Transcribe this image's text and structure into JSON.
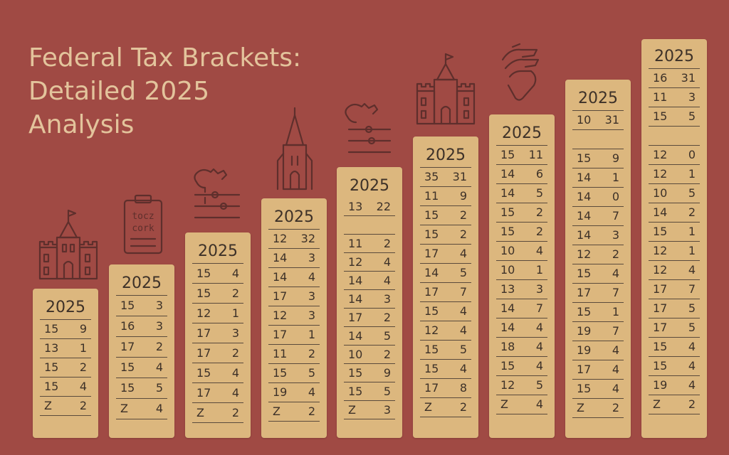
{
  "title_lines": [
    "Federal Tax Brackets:",
    "Detailed 2025",
    "Analysis"
  ],
  "notepad_text": [
    "tocz",
    "cork"
  ],
  "colors": {
    "background": "#a04a44",
    "card": "#dcb77e",
    "title": "#e3c49c",
    "ink": "#5e2f2c"
  },
  "cards": [
    {
      "year": "2025",
      "rows": [
        [
          "15",
          "9"
        ],
        [
          "13",
          "1"
        ],
        [
          "15",
          "2"
        ],
        [
          "15",
          "4"
        ],
        [
          "Z",
          "2"
        ]
      ]
    },
    {
      "year": "2025",
      "rows": [
        [
          "15",
          "3"
        ],
        [
          "16",
          "3"
        ],
        [
          "17",
          "2"
        ],
        [
          "15",
          "4"
        ],
        [
          "15",
          "5"
        ],
        [
          "Z",
          "4"
        ]
      ]
    },
    {
      "year": "2025",
      "rows": [
        [
          "15",
          "4"
        ],
        [
          "15",
          "2"
        ],
        [
          "12",
          "1"
        ],
        [
          "17",
          "3"
        ],
        [
          "17",
          "2"
        ],
        [
          "15",
          "4"
        ],
        [
          "17",
          "4"
        ],
        [
          "Z",
          "2"
        ]
      ]
    },
    {
      "year": "2025",
      "rows": [
        [
          "12",
          "32"
        ],
        [
          "14",
          "3"
        ],
        [
          "14",
          "4"
        ],
        [
          "17",
          "3"
        ],
        [
          "12",
          "3"
        ],
        [
          "17",
          "1"
        ],
        [
          "11",
          "2"
        ],
        [
          "15",
          "5"
        ],
        [
          "19",
          "4"
        ],
        [
          "Z",
          "2"
        ]
      ]
    },
    {
      "year": "2025",
      "rows": [
        [
          "13",
          "22"
        ],
        [
          "",
          ""
        ],
        [
          "11",
          "2"
        ],
        [
          "12",
          "4"
        ],
        [
          "14",
          "4"
        ],
        [
          "14",
          "3"
        ],
        [
          "17",
          "2"
        ],
        [
          "14",
          "5"
        ],
        [
          "10",
          "2"
        ],
        [
          "15",
          "9"
        ],
        [
          "15",
          "5"
        ],
        [
          "Z",
          "3"
        ]
      ]
    },
    {
      "year": "2025",
      "rows": [
        [
          "35",
          "31"
        ],
        [
          "11",
          "9"
        ],
        [
          "15",
          "2"
        ],
        [
          "15",
          "2"
        ],
        [
          "17",
          "4"
        ],
        [
          "14",
          "5"
        ],
        [
          "17",
          "7"
        ],
        [
          "15",
          "4"
        ],
        [
          "12",
          "4"
        ],
        [
          "15",
          "5"
        ],
        [
          "15",
          "4"
        ],
        [
          "17",
          "8"
        ],
        [
          "Z",
          "2"
        ]
      ]
    },
    {
      "year": "2025",
      "rows": [
        [
          "15",
          "11"
        ],
        [
          "14",
          "6"
        ],
        [
          "14",
          "5"
        ],
        [
          "15",
          "2"
        ],
        [
          "15",
          "2"
        ],
        [
          "10",
          "4"
        ],
        [
          "10",
          "1"
        ],
        [
          "13",
          "3"
        ],
        [
          "14",
          "7"
        ],
        [
          "14",
          "4"
        ],
        [
          "18",
          "4"
        ],
        [
          "15",
          "4"
        ],
        [
          "12",
          "5"
        ],
        [
          "Z",
          "4"
        ]
      ]
    },
    {
      "year": "2025",
      "rows": [
        [
          "10",
          "31"
        ],
        [
          "",
          ""
        ],
        [
          "15",
          "9"
        ],
        [
          "14",
          "1"
        ],
        [
          "14",
          "0"
        ],
        [
          "14",
          "7"
        ],
        [
          "14",
          "3"
        ],
        [
          "12",
          "2"
        ],
        [
          "15",
          "4"
        ],
        [
          "17",
          "7"
        ],
        [
          "15",
          "1"
        ],
        [
          "19",
          "7"
        ],
        [
          "19",
          "4"
        ],
        [
          "17",
          "4"
        ],
        [
          "15",
          "4"
        ],
        [
          "Z",
          "2"
        ]
      ]
    },
    {
      "year": "2025",
      "rows": [
        [
          "16",
          "31"
        ],
        [
          "11",
          "3"
        ],
        [
          "15",
          "5"
        ],
        [
          "",
          ""
        ],
        [
          "12",
          "0"
        ],
        [
          "12",
          "1"
        ],
        [
          "10",
          "5"
        ],
        [
          "14",
          "2"
        ],
        [
          "15",
          "1"
        ],
        [
          "12",
          "1"
        ],
        [
          "12",
          "4"
        ],
        [
          "17",
          "7"
        ],
        [
          "17",
          "5"
        ],
        [
          "17",
          "5"
        ],
        [
          "15",
          "4"
        ],
        [
          "15",
          "4"
        ],
        [
          "19",
          "4"
        ],
        [
          "Z",
          "2"
        ]
      ]
    }
  ]
}
